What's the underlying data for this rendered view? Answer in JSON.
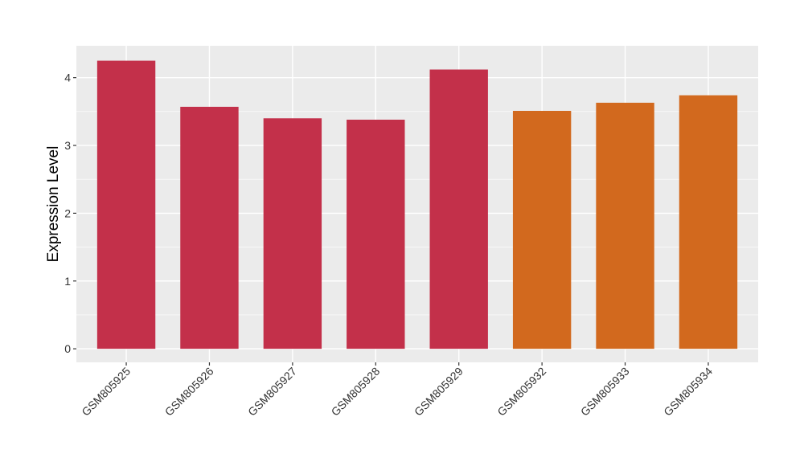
{
  "chart_data": {
    "type": "bar",
    "title": "",
    "xlabel": "",
    "ylabel": "Expression Level",
    "ylim": [
      -0.2,
      4.47
    ],
    "yticks": [
      0,
      1,
      2,
      3,
      4
    ],
    "grid": true,
    "categories": [
      "GSM805925",
      "GSM805926",
      "GSM805927",
      "GSM805928",
      "GSM805929",
      "GSM805932",
      "GSM805933",
      "GSM805934"
    ],
    "values": [
      4.25,
      3.57,
      3.4,
      3.38,
      4.12,
      3.51,
      3.63,
      3.74
    ],
    "bar_colors": [
      "#C3304A",
      "#C3304A",
      "#C3304A",
      "#C3304A",
      "#C3304A",
      "#D2691E",
      "#D2691E",
      "#D2691E"
    ],
    "panel_background": "#EBEBEB",
    "gridline_color": "#FFFFFF"
  }
}
